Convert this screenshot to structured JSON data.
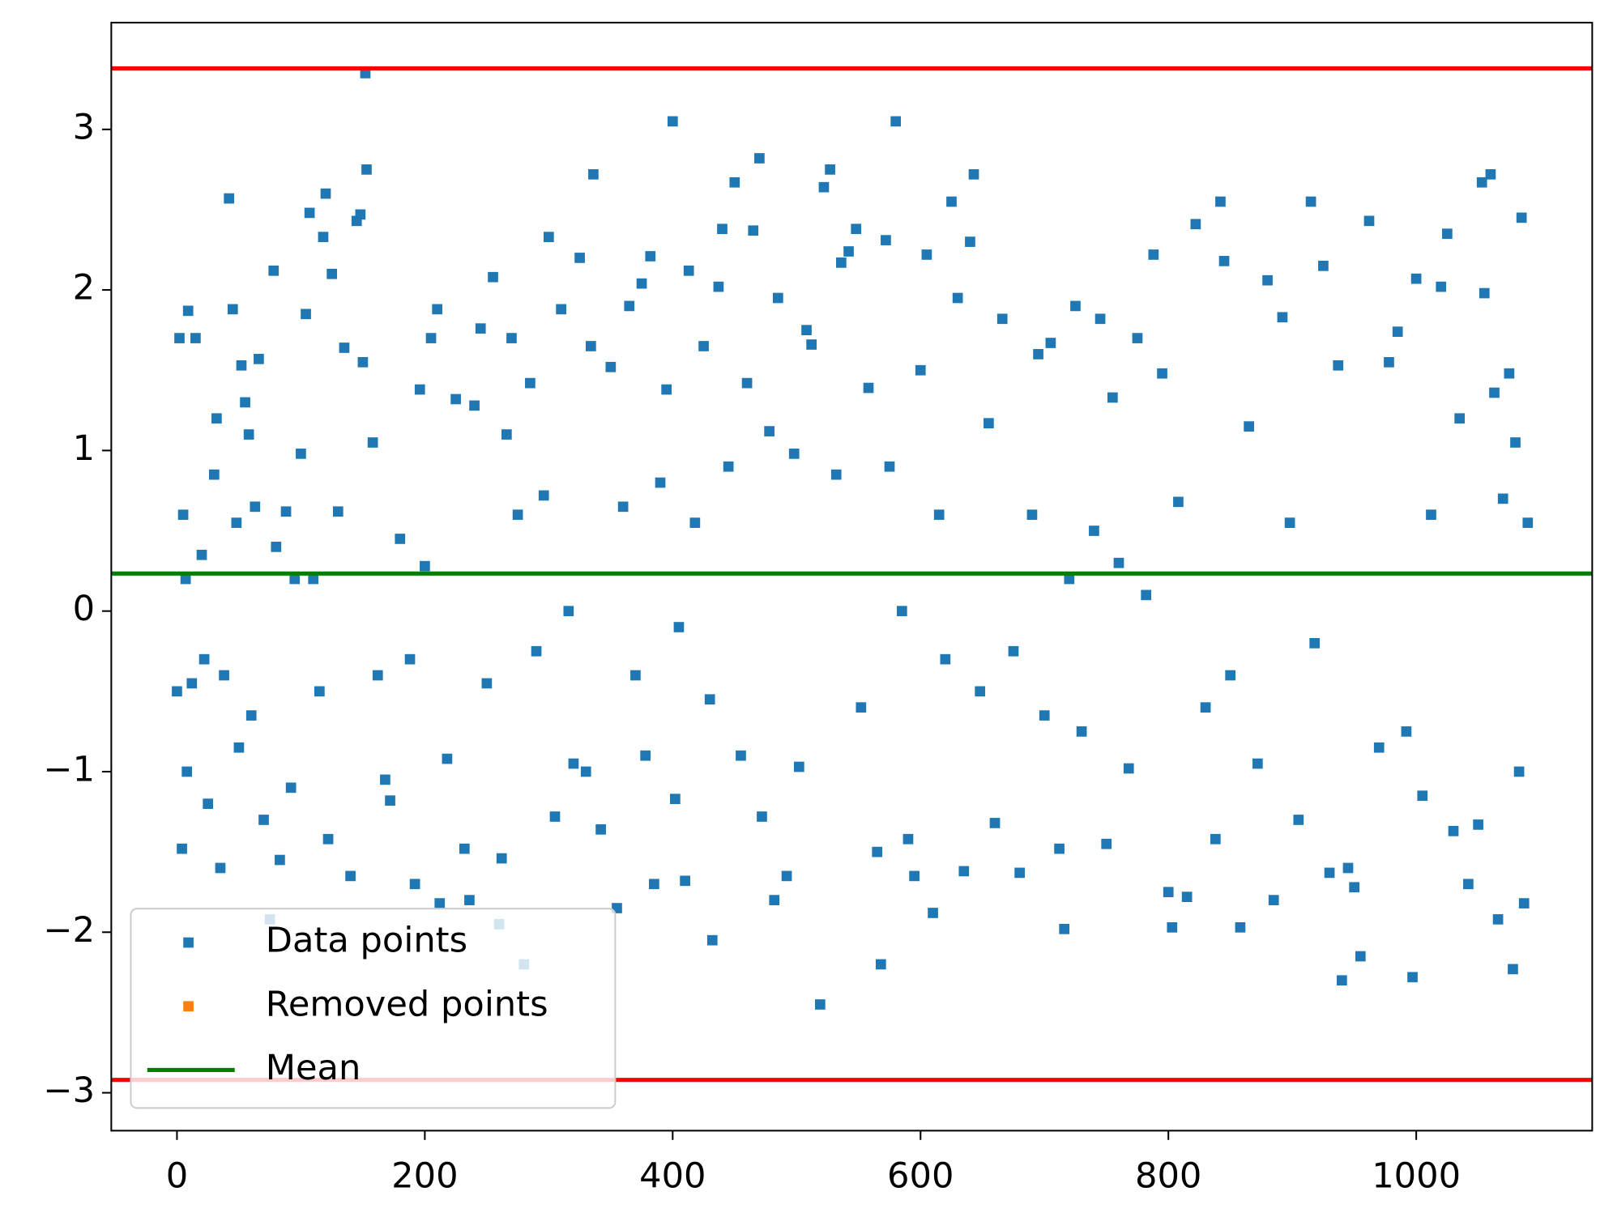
{
  "chart_data": {
    "type": "scatter",
    "xlim": [
      -53,
      1142
    ],
    "ylim": [
      -3.236,
      3.665
    ],
    "xticks": [
      0,
      200,
      400,
      600,
      800,
      1000
    ],
    "yticks": [
      {
        "value": -3,
        "label": "−3"
      },
      {
        "value": -2,
        "label": "−2"
      },
      {
        "value": -1,
        "label": "−1"
      },
      0,
      1,
      2,
      3
    ],
    "legend": "lower left",
    "series": [
      {
        "name": "Data points",
        "color": "#1f77b4",
        "x": [
          0,
          2,
          4,
          5,
          7,
          8,
          9,
          12,
          15,
          20,
          22,
          25,
          30,
          32,
          35,
          38,
          42,
          45,
          48,
          50,
          52,
          55,
          58,
          60,
          63,
          66,
          70,
          75,
          78,
          80,
          83,
          88,
          92,
          95,
          100,
          104,
          107,
          110,
          115,
          118,
          120,
          122,
          125,
          130,
          135,
          140,
          145,
          148,
          150,
          152,
          153,
          158,
          162,
          168,
          172,
          180,
          188,
          192,
          196,
          200,
          205,
          210,
          212,
          218,
          225,
          232,
          236,
          240,
          245,
          250,
          255,
          260,
          262,
          266,
          270,
          275,
          280,
          285,
          290,
          296,
          300,
          305,
          310,
          316,
          320,
          325,
          330,
          334,
          336,
          342,
          350,
          355,
          360,
          365,
          370,
          375,
          378,
          382,
          385,
          390,
          395,
          400,
          402,
          405,
          410,
          413,
          418,
          425,
          430,
          432,
          437,
          440,
          445,
          450,
          455,
          460,
          465,
          470,
          472,
          478,
          482,
          485,
          492,
          498,
          502,
          508,
          512,
          519,
          522,
          527,
          532,
          536,
          542,
          548,
          552,
          558,
          565,
          568,
          572,
          575,
          580,
          585,
          590,
          595,
          600,
          605,
          610,
          615,
          620,
          625,
          630,
          635,
          640,
          643,
          648,
          655,
          660,
          666,
          675,
          680,
          690,
          695,
          700,
          705,
          712,
          716,
          720,
          725,
          730,
          740,
          745,
          750,
          755,
          760,
          768,
          775,
          782,
          788,
          795,
          800,
          803,
          808,
          815,
          822,
          830,
          838,
          842,
          845,
          850,
          858,
          865,
          872,
          880,
          885,
          892,
          898,
          905,
          915,
          918,
          925,
          930,
          937,
          940,
          945,
          950,
          955,
          962,
          970,
          978,
          985,
          992,
          997,
          1000,
          1005,
          1012,
          1020,
          1025,
          1030,
          1035,
          1042,
          1050,
          1053,
          1055,
          1060,
          1063,
          1066,
          1070,
          1075,
          1078,
          1080,
          1083,
          1085,
          1087,
          1090
        ],
        "values": [
          -0.5,
          1.7,
          -1.48,
          0.6,
          0.2,
          -1.0,
          1.87,
          -0.45,
          1.7,
          0.35,
          -0.3,
          -1.2,
          0.85,
          1.2,
          -1.6,
          -0.4,
          2.57,
          1.88,
          0.55,
          -0.85,
          1.53,
          1.3,
          1.1,
          -0.65,
          0.65,
          1.57,
          -1.3,
          -1.92,
          2.12,
          0.4,
          -1.55,
          0.62,
          -1.1,
          0.2,
          0.98,
          1.85,
          2.48,
          0.2,
          -0.5,
          2.33,
          2.6,
          -1.42,
          2.1,
          0.62,
          1.64,
          -1.65,
          2.43,
          2.47,
          1.55,
          3.35,
          2.75,
          1.05,
          -0.4,
          -1.05,
          -1.18,
          0.45,
          -0.3,
          -1.7,
          1.38,
          0.28,
          1.7,
          1.88,
          -1.82,
          -0.92,
          1.32,
          -1.48,
          -1.8,
          1.28,
          1.76,
          -0.45,
          2.08,
          -1.95,
          -1.54,
          1.1,
          1.7,
          0.6,
          -2.2,
          1.42,
          -0.25,
          0.72,
          2.33,
          -1.28,
          1.88,
          0.0,
          -0.95,
          2.2,
          -1.0,
          1.65,
          2.72,
          -1.36,
          1.52,
          -1.85,
          0.65,
          1.9,
          -0.4,
          2.04,
          -0.9,
          2.21,
          -1.7,
          0.8,
          1.38,
          3.05,
          -1.17,
          -0.1,
          -1.68,
          2.12,
          0.55,
          1.65,
          -0.55,
          -2.05,
          2.02,
          2.38,
          0.9,
          2.67,
          -0.9,
          1.42,
          2.37,
          2.82,
          -1.28,
          1.12,
          -1.8,
          1.95,
          -1.65,
          0.98,
          -0.97,
          1.75,
          1.66,
          -2.45,
          2.64,
          2.75,
          0.85,
          2.17,
          2.24,
          2.38,
          -0.6,
          1.39,
          -1.5,
          -2.2,
          2.31,
          0.9,
          3.05,
          0.0,
          -1.42,
          -1.65,
          1.5,
          2.22,
          -1.88,
          0.6,
          -0.3,
          2.55,
          1.95,
          -1.62,
          2.3,
          2.72,
          -0.5,
          1.17,
          -1.32,
          1.82,
          -0.25,
          -1.63,
          0.6,
          1.6,
          -0.65,
          1.67,
          -1.48,
          -1.98,
          0.2,
          1.9,
          -0.75,
          0.5,
          1.82,
          -1.45,
          1.33,
          0.3,
          -0.98,
          1.7,
          0.1,
          2.22,
          1.48,
          -1.75,
          -1.97,
          0.68,
          -1.78,
          2.41,
          -0.6,
          -1.42,
          2.55,
          2.18,
          -0.4,
          -1.97,
          1.15,
          -0.95,
          2.06,
          -1.8,
          1.83,
          0.55,
          -1.3,
          2.55,
          -0.2,
          2.15,
          -1.63,
          1.53,
          -2.3,
          -1.6,
          -1.72,
          -2.15,
          2.43,
          -0.85,
          1.55,
          1.74,
          -0.75,
          -2.28,
          2.07,
          -1.15,
          0.6,
          2.02,
          2.35,
          -1.37,
          1.2,
          -1.7,
          -1.33,
          2.67,
          1.98,
          2.72,
          1.36,
          -1.92,
          0.7,
          1.48,
          -2.23,
          1.05,
          -1.0,
          2.45,
          -1.82,
          0.55
        ]
      },
      {
        "name": "Removed points",
        "color": "#ff7f0e",
        "x": [],
        "values": []
      }
    ],
    "lines": [
      {
        "name": "Mean",
        "color": "#008000",
        "value": 0.234
      }
    ],
    "thresholds": {
      "color": "#ff0000",
      "values": [
        3.38,
        -2.92
      ]
    }
  }
}
